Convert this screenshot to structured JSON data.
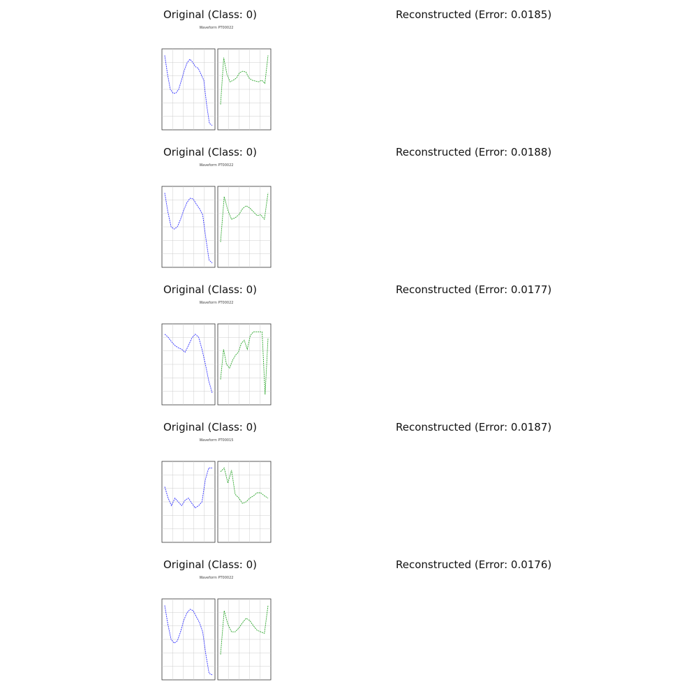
{
  "panels": [
    {
      "original_title": "Original (Class: 0)",
      "reconstructed_title": "Reconstructed (Error: 0.0185)",
      "thumb_caption": "Waveform PT00022",
      "chart_data": {
        "type": "line",
        "series": [
          {
            "name": "",
            "color": "#3030ff",
            "values": [
              0.95,
              0.7,
              0.5,
              0.45,
              0.45,
              0.5,
              0.62,
              0.75,
              0.85,
              0.9,
              0.86,
              0.8,
              0.78,
              0.7,
              0.62,
              0.3,
              0.05,
              0.02
            ]
          },
          {
            "name": "",
            "color": "#2aa52a",
            "values": [
              0.3,
              0.92,
              0.7,
              0.6,
              0.62,
              0.65,
              0.72,
              0.74,
              0.73,
              0.65,
              0.62,
              0.61,
              0.6,
              0.62,
              0.58,
              0.95
            ]
          }
        ]
      }
    },
    {
      "original_title": "Original (Class: 0)",
      "reconstructed_title": "Reconstructed (Error: 0.0188)",
      "thumb_caption": "Waveform PT00022",
      "chart_data": {
        "type": "line",
        "series": [
          {
            "name": "",
            "color": "#3030ff",
            "values": [
              0.95,
              0.7,
              0.5,
              0.47,
              0.5,
              0.6,
              0.72,
              0.82,
              0.88,
              0.87,
              0.8,
              0.74,
              0.66,
              0.35,
              0.06,
              0.02
            ]
          },
          {
            "name": "",
            "color": "#2aa52a",
            "values": [
              0.3,
              0.9,
              0.72,
              0.6,
              0.62,
              0.66,
              0.74,
              0.78,
              0.75,
              0.7,
              0.65,
              0.66,
              0.6,
              0.95
            ]
          }
        ]
      }
    },
    {
      "original_title": "Original (Class: 0)",
      "reconstructed_title": "Reconstructed (Error: 0.0177)",
      "thumb_caption": "Waveform PT00022",
      "chart_data": {
        "type": "line",
        "series": [
          {
            "name": "",
            "color": "#3030ff",
            "values": [
              0.9,
              0.86,
              0.8,
              0.75,
              0.72,
              0.7,
              0.66,
              0.75,
              0.85,
              0.9,
              0.86,
              0.7,
              0.5,
              0.28,
              0.12
            ]
          },
          {
            "name": "",
            "color": "#2aa52a",
            "values": [
              0.3,
              0.7,
              0.5,
              0.45,
              0.55,
              0.62,
              0.66,
              0.78,
              0.82,
              0.7,
              0.88,
              0.93,
              0.93,
              0.93,
              0.93,
              0.1,
              0.85
            ]
          }
        ]
      }
    },
    {
      "original_title": "Original (Class: 0)",
      "reconstructed_title": "Reconstructed (Error: 0.0187)",
      "thumb_caption": "Waveform PT00015",
      "chart_data": {
        "type": "line",
        "series": [
          {
            "name": "",
            "color": "#3030ff",
            "values": [
              0.7,
              0.55,
              0.45,
              0.55,
              0.5,
              0.45,
              0.52,
              0.55,
              0.48,
              0.42,
              0.45,
              0.5,
              0.8,
              0.95,
              0.95
            ]
          },
          {
            "name": "",
            "color": "#2aa52a",
            "values": [
              0.9,
              0.95,
              0.75,
              0.92,
              0.6,
              0.55,
              0.48,
              0.5,
              0.55,
              0.58,
              0.62,
              0.62,
              0.58,
              0.55
            ]
          }
        ]
      }
    },
    {
      "original_title": "Original (Class: 0)",
      "reconstructed_title": "Reconstructed (Error: 0.0176)",
      "thumb_caption": "Waveform PT00022",
      "chart_data": {
        "type": "line",
        "series": [
          {
            "name": "",
            "color": "#3030ff",
            "values": [
              0.95,
              0.7,
              0.5,
              0.45,
              0.48,
              0.6,
              0.75,
              0.85,
              0.9,
              0.88,
              0.8,
              0.72,
              0.6,
              0.3,
              0.05,
              0.03
            ]
          },
          {
            "name": "",
            "color": "#2aa52a",
            "values": [
              0.3,
              0.88,
              0.7,
              0.6,
              0.6,
              0.65,
              0.72,
              0.78,
              0.75,
              0.68,
              0.62,
              0.6,
              0.58,
              0.95
            ]
          }
        ]
      }
    }
  ]
}
